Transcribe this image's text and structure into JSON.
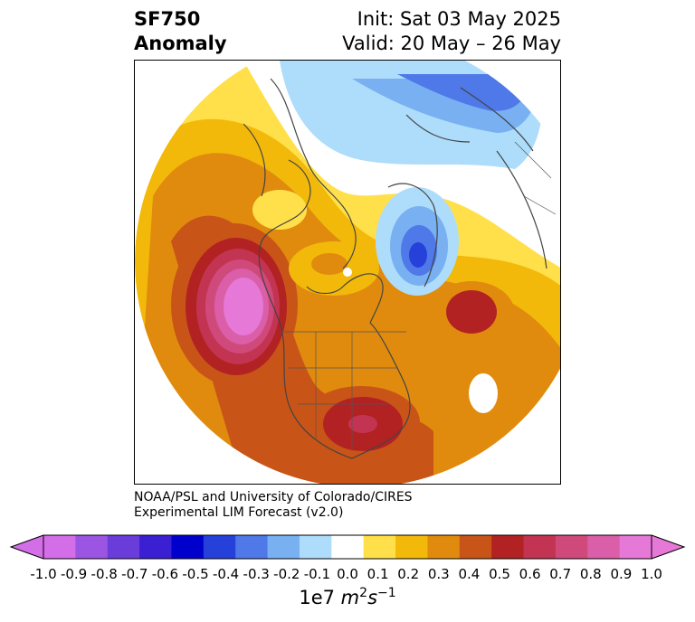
{
  "title": {
    "field": "SF750",
    "subtitle": "Anomaly",
    "init": "Init: Sat 03 May 2025",
    "valid": "Valid: 20 May – 26 May"
  },
  "credit": {
    "line1": "NOAA/PSL and University of Colorado/CIRES",
    "line2": "Experimental LIM Forecast (v2.0)"
  },
  "colorbar": {
    "ticks": [
      "-1.0",
      "-0.9",
      "-0.8",
      "-0.7",
      "-0.6",
      "-0.5",
      "-0.4",
      "-0.3",
      "-0.2",
      "-0.1",
      "0.0",
      "0.1",
      "0.2",
      "0.3",
      "0.4",
      "0.5",
      "0.6",
      "0.7",
      "0.8",
      "0.9",
      "1.0"
    ],
    "colors": [
      "#d46ee8",
      "#9c55e3",
      "#6a3ddb",
      "#3a1fd3",
      "#0000cd",
      "#2640da",
      "#4f78e8",
      "#78b0f2",
      "#aedcfb",
      "#ffffff",
      "#ffe04a",
      "#f2b90a",
      "#e08b0e",
      "#c85418",
      "#b22222",
      "#c23452",
      "#cf4a7a",
      "#da5fa8",
      "#e678d8"
    ],
    "label_main": "1e7 ",
    "label_unit": "m",
    "label_sup1": "2",
    "label_unit2": "s",
    "label_sup2": "−1",
    "min_color": "#d46ee8",
    "max_color": "#e678d8"
  }
}
